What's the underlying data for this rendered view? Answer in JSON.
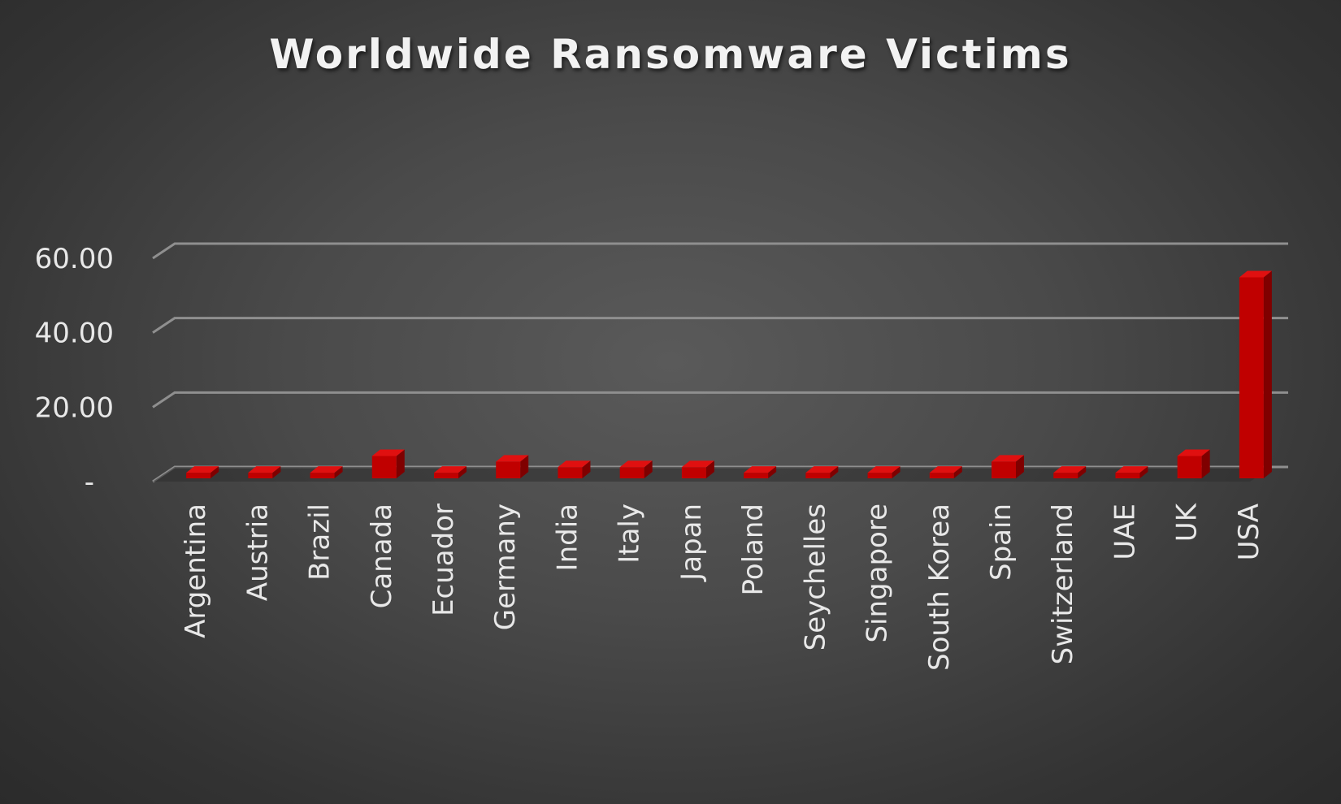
{
  "chart_data": {
    "type": "bar",
    "title": "Worldwide Ransomware Victims",
    "xlabel": "",
    "ylabel": "",
    "categories": [
      "Argentina",
      "Austria",
      "Brazil",
      "Canada",
      "Ecuador",
      "Germany",
      "India",
      "Italy",
      "Japan",
      "Poland",
      "Seychelles",
      "Singapore",
      "South Korea",
      "Spain",
      "Switzerland",
      "UAE",
      "UK",
      "USA"
    ],
    "values": [
      1.5,
      1.5,
      1.5,
      6.0,
      1.5,
      4.5,
      3.0,
      3.0,
      3.0,
      1.5,
      1.5,
      1.5,
      1.5,
      4.5,
      1.5,
      1.5,
      6.0,
      54.0
    ],
    "ylim": [
      0,
      60
    ],
    "yticks": [
      {
        "value": 0,
        "label": "-"
      },
      {
        "value": 20,
        "label": "20.00"
      },
      {
        "value": 40,
        "label": "40.00"
      },
      {
        "value": 60,
        "label": "60.00"
      }
    ],
    "grid": true,
    "legend": "none",
    "style": "3d-column"
  },
  "colors": {
    "bar_front": "#c00000",
    "bar_side": "#7f0000",
    "bar_top": "#e01010",
    "gridline": "#8f8f8f",
    "text": "#e8e8e8"
  }
}
